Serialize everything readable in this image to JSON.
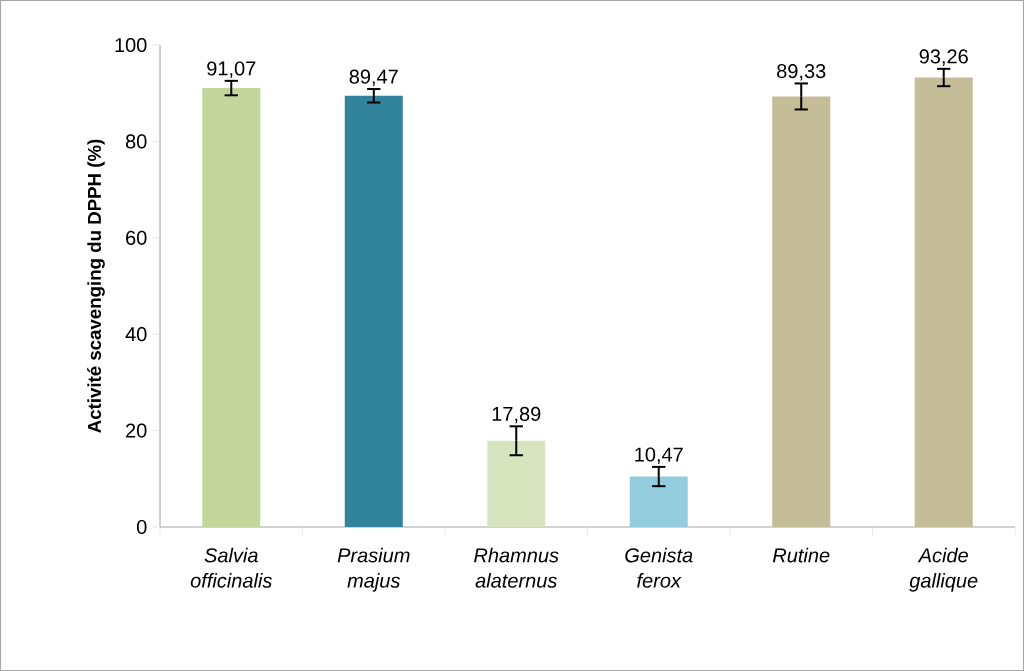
{
  "chart_data": {
    "type": "bar",
    "ylabel": "Activité scavenging du DPPH (%)",
    "categories": [
      "Salvia officinalis",
      "Prasium majus",
      "Rhamnus alaternus",
      "Genista ferox",
      "Rutine",
      "Acide gallique"
    ],
    "values": [
      91.07,
      89.47,
      17.89,
      10.47,
      89.33,
      93.26
    ],
    "errors": [
      1.5,
      1.4,
      3,
      2,
      2.7,
      1.8
    ],
    "value_labels": [
      "91,07",
      "89,47",
      "17,89",
      "10,47",
      "89,33",
      "93,26"
    ],
    "colors": [
      "#c4d69b",
      "#31849b",
      "#d7e4bd",
      "#93cddd",
      "#c4bd97",
      "#c4bd97"
    ],
    "ylim": [
      0,
      100
    ],
    "yticks": [
      0,
      20,
      40,
      60,
      80,
      100
    ],
    "grid": false
  }
}
